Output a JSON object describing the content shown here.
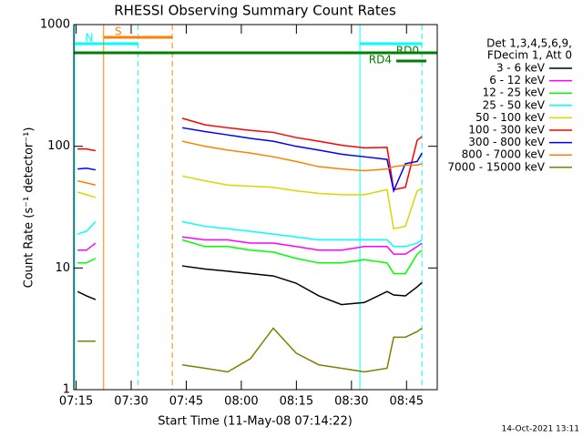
{
  "chart_data": {
    "type": "line",
    "title": "RHESSI Observing Summary Count Rates",
    "xlabel": "Start Time (11-May-08 07:14:22)",
    "ylabel": "Count Rate (s⁻¹ detector⁻¹)",
    "footer": "14-Oct-2021 13:11",
    "legend_header": [
      "Det 1,3,4,5,6,9,",
      "FDecim 1, Att 0"
    ],
    "log_y": true,
    "xlim": [
      434.367,
      533.367
    ],
    "xticks": [
      {
        "value": 435,
        "label": "07:15"
      },
      {
        "value": 450,
        "label": "07:30"
      },
      {
        "value": 465,
        "label": "07:45"
      },
      {
        "value": 480,
        "label": "08:00"
      },
      {
        "value": 495,
        "label": "08:15"
      },
      {
        "value": 510,
        "label": "08:30"
      },
      {
        "value": 525,
        "label": "08:45"
      }
    ],
    "ylim": [
      1,
      1000
    ],
    "yticks": [
      1,
      10,
      100,
      1000
    ],
    "x": [
      435.4,
      437.8,
      440.3,
      452,
      463.9,
      470.1,
      476.3,
      482.5,
      488.7,
      494.9,
      501.1,
      507.3,
      513.5,
      519.7,
      521.5,
      524.7,
      527.9,
      529.2
    ],
    "series": [
      {
        "name": "3 - 6 keV",
        "color": "#000000",
        "values": [
          6.4,
          5.9,
          5.5,
          null,
          10.4,
          9.8,
          9.4,
          9,
          8.6,
          7.5,
          5.9,
          5,
          5.2,
          6.4,
          6,
          5.9,
          7,
          7.6
        ]
      },
      {
        "name": "6 - 12 keV",
        "color": "#ff00ff",
        "values": [
          14,
          14,
          16,
          null,
          18,
          17,
          17,
          16,
          16,
          15,
          14,
          14,
          15,
          15,
          13,
          13,
          15,
          16
        ]
      },
      {
        "name": "12 - 25 keV",
        "color": "#00ff00",
        "values": [
          11,
          11,
          12,
          null,
          17,
          15,
          15,
          14,
          13.5,
          12,
          11,
          11,
          11.7,
          11,
          9,
          9,
          13,
          14
        ]
      },
      {
        "name": "25 - 50 keV",
        "color": "#00ffff",
        "values": [
          19,
          20,
          24,
          null,
          24,
          22,
          21,
          20,
          19,
          18,
          17,
          17,
          17,
          17,
          15,
          15,
          16,
          17
        ]
      },
      {
        "name": "50 - 100 keV",
        "color": "#d8d800",
        "values": [
          42,
          40,
          38,
          null,
          57,
          52,
          48,
          47,
          46,
          43,
          41,
          40,
          40,
          44,
          21,
          22,
          43,
          45
        ]
      },
      {
        "name": "100 - 300 keV",
        "color": "#ff0000",
        "values": [
          95,
          95,
          92,
          null,
          170,
          150,
          142,
          135,
          130,
          118,
          110,
          102,
          97,
          98,
          44,
          46,
          112,
          120
        ]
      },
      {
        "name": "300 - 800 keV",
        "color": "#0000ff",
        "values": [
          65,
          66,
          64,
          null,
          142,
          132,
          124,
          116,
          110,
          100,
          93,
          86,
          82,
          78,
          43,
          72,
          75,
          88
        ]
      },
      {
        "name": "800 - 7000 keV",
        "color": "#ff8000",
        "values": [
          52,
          50,
          48,
          null,
          110,
          100,
          93,
          88,
          82,
          75,
          68,
          65,
          63,
          65,
          68,
          70,
          70,
          72
        ]
      },
      {
        "name": "7000 - 15000 keV",
        "color": "#808000",
        "values": [
          2.5,
          2.5,
          2.5,
          null,
          1.6,
          1.5,
          1.4,
          1.8,
          3.2,
          2,
          1.6,
          1.5,
          1.4,
          1.5,
          2.7,
          2.7,
          3,
          3.2
        ]
      }
    ],
    "flags": [
      {
        "label": "N",
        "color": "#00ffff",
        "start": 434.6,
        "end": 451.9,
        "edges": true
      },
      {
        "label": "S",
        "color": "#ff8000",
        "start": 442.5,
        "end": 461.2,
        "edges": true
      },
      {
        "color": "#00ffff",
        "start": 512.3,
        "end": 529.2,
        "edges": true
      },
      {
        "label": "RD0",
        "color": "#008000",
        "start": 434.4,
        "end": 533.3
      },
      {
        "label": "RD4",
        "color": "#008000",
        "start": 522.2,
        "end": 530.4
      }
    ]
  }
}
